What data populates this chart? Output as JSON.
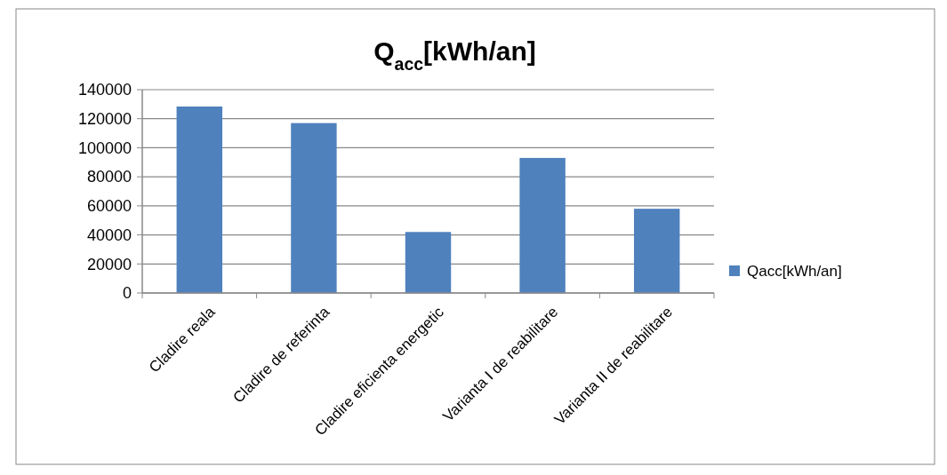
{
  "chart_data": {
    "type": "bar",
    "title": "Q$_{acc}$[kWh/an]",
    "categories": [
      "Cladire reala",
      "Cladire de referinta",
      "Cladire eficienta energetic",
      "Varianta I de reabilitare",
      "Varianta II de reabilitare"
    ],
    "series": [
      {
        "name": "Qacc[kWh/an]",
        "color": "#4f81bd",
        "values": [
          128400,
          117000,
          42000,
          93000,
          58000
        ]
      }
    ],
    "ylim": [
      0,
      140000
    ],
    "yticks": [
      0,
      20000,
      40000,
      60000,
      80000,
      100000,
      120000,
      140000
    ],
    "grid": "y",
    "legend": "right"
  }
}
